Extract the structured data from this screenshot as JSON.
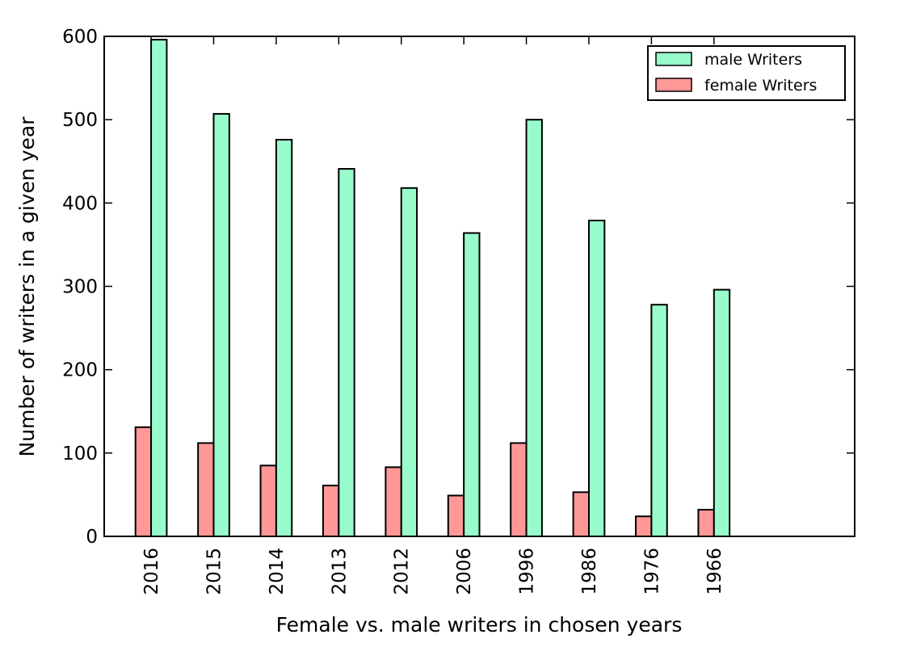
{
  "chart_data": {
    "type": "bar",
    "title": "",
    "xlabel": "Female vs. male writers in chosen years",
    "ylabel": "Number of writers in a given year",
    "ylim": [
      0,
      600
    ],
    "yticks": [
      0,
      100,
      200,
      300,
      400,
      500,
      600
    ],
    "grid": false,
    "legend_position": "top-right",
    "categories": [
      "2016",
      "2015",
      "2014",
      "2013",
      "2012",
      "2006",
      "1996",
      "1986",
      "1976",
      "1966"
    ],
    "series": [
      {
        "name": "female Writers",
        "color": "#ff9896",
        "values": [
          131,
          112,
          85,
          61,
          83,
          49,
          112,
          53,
          24,
          32
        ]
      },
      {
        "name": "male Writers",
        "color": "#98fbcb",
        "values": [
          596,
          507,
          476,
          441,
          418,
          364,
          500,
          379,
          278,
          296
        ]
      }
    ],
    "legend_order": [
      "male Writers",
      "female Writers"
    ]
  }
}
